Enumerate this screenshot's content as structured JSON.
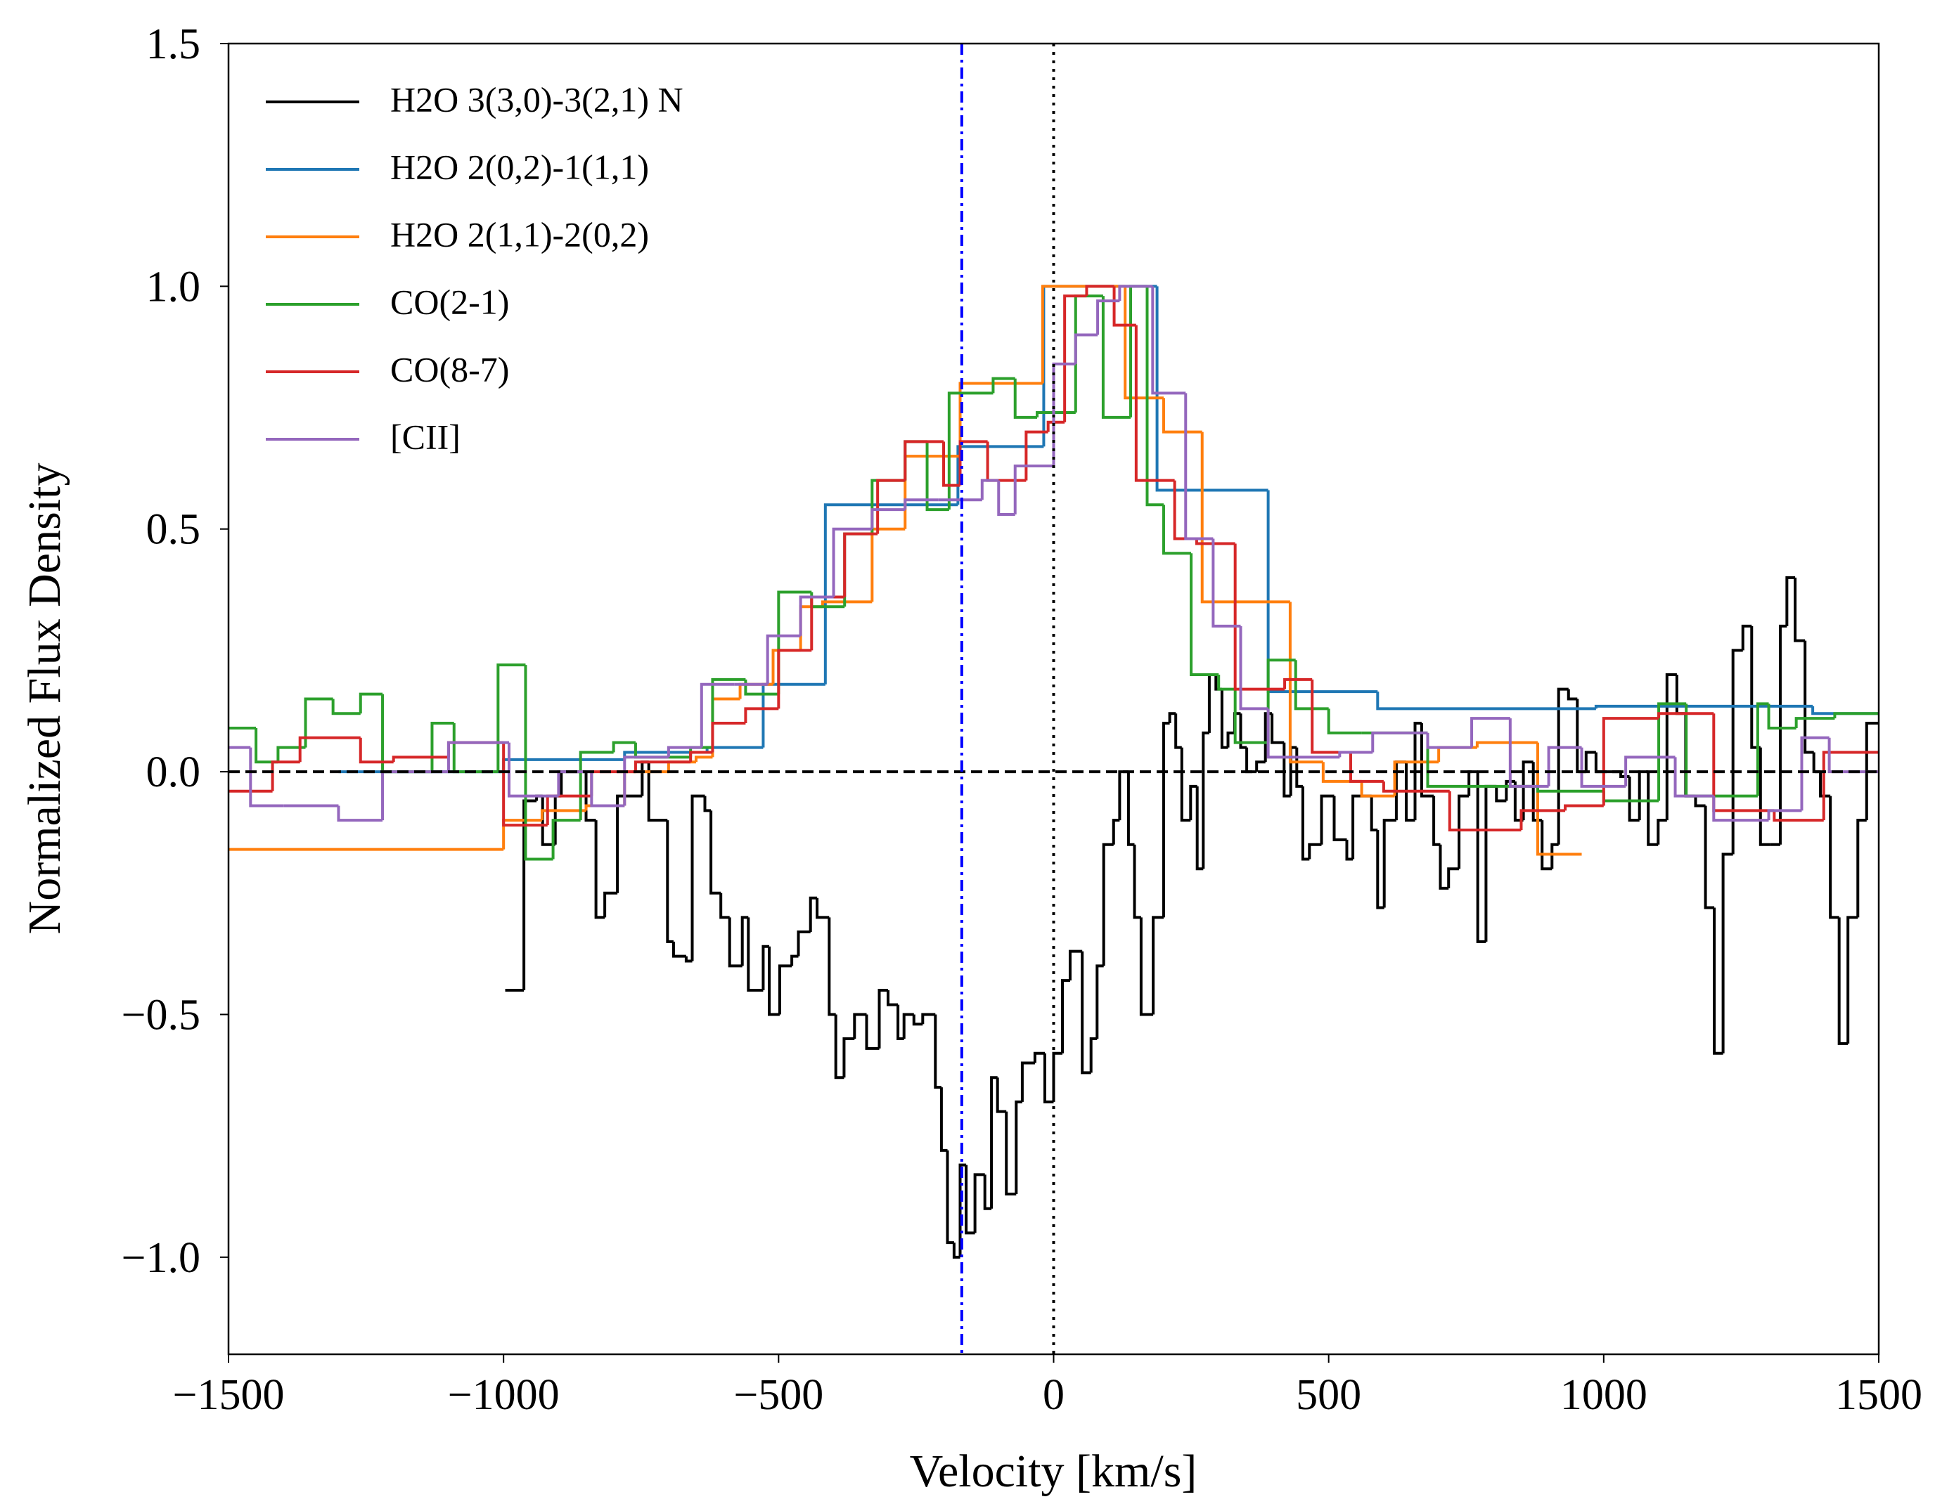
{
  "chart_data": {
    "type": "step",
    "x_label": "Velocity [km/s]",
    "y_label": "Normalized Flux Density",
    "xlim": [
      -1500,
      1500
    ],
    "ylim": [
      -1.2,
      1.5
    ],
    "xticks": [
      {
        "value": -1500,
        "label": "−1500"
      },
      {
        "value": -1000,
        "label": "−1000"
      },
      {
        "value": -500,
        "label": "−500"
      },
      0,
      500,
      1000,
      1500
    ],
    "yticks": [
      {
        "value": -1,
        "label": "−1.0"
      },
      {
        "value": -0.5,
        "label": "−0.5"
      },
      {
        "value": 0,
        "label": "0.0"
      },
      0.5,
      {
        "value": 1,
        "label": "1.0"
      },
      1.5
    ],
    "legend": "upper left",
    "reference_lines": [
      {
        "axis": "y",
        "value": 0,
        "style": "dashed",
        "color": "#000000"
      },
      {
        "axis": "x",
        "value": 0,
        "style": "dotted",
        "color": "#000000"
      },
      {
        "axis": "x",
        "value": -167,
        "style": "dashdot",
        "color": "#0000ff"
      }
    ],
    "series": [
      {
        "name": "H2O 3(3,0)-3(2,1) N",
        "color": "#000000",
        "bins": [
          -997,
          -963,
          -940,
          -929,
          -906,
          -895,
          -850,
          -832,
          -816,
          -793,
          -748,
          -736,
          -702,
          -691,
          -668,
          -657,
          -634,
          -623,
          -605,
          -589,
          -566,
          -555,
          -528,
          -517,
          -498,
          -476,
          -464,
          -442,
          -430,
          -408,
          -396,
          -381,
          -362,
          -340,
          -317,
          -301,
          -283,
          -272,
          -254,
          -238,
          -215,
          -204,
          -193,
          -181,
          -170,
          -159,
          -143,
          -125,
          -113,
          -102,
          -86,
          -68,
          -57,
          -34,
          -16,
          0,
          16,
          30,
          52,
          68,
          79,
          91,
          109,
          120,
          136,
          147,
          159,
          181,
          200,
          211,
          222,
          233,
          249,
          261,
          272,
          283,
          295,
          306,
          317,
          329,
          340,
          351,
          369,
          385,
          397,
          419,
          431,
          442,
          453,
          465,
          487,
          510,
          533,
          544,
          578,
          589,
          601,
          623,
          641,
          657,
          669,
          691,
          703,
          718,
          737,
          755,
          771,
          786,
          805,
          823,
          839,
          854,
          872,
          888,
          906,
          918,
          936,
          952,
          968,
          986,
          1031,
          1047,
          1065,
          1081,
          1099,
          1115,
          1133,
          1149,
          1167,
          1185,
          1201,
          1217,
          1235,
          1253,
          1269,
          1285,
          1303,
          1321,
          1333,
          1348,
          1366,
          1382,
          1394,
          1412,
          1428,
          1444,
          1462,
          1478,
          1500
        ],
        "values": [
          -0.45,
          -0.06,
          -0.05,
          -0.15,
          -0.05,
          0.0,
          -0.1,
          -0.3,
          -0.25,
          -0.05,
          0.02,
          -0.1,
          -0.35,
          -0.38,
          -0.39,
          -0.05,
          -0.08,
          -0.25,
          -0.3,
          -0.4,
          -0.3,
          -0.45,
          -0.36,
          -0.5,
          -0.4,
          -0.38,
          -0.33,
          -0.26,
          -0.3,
          -0.5,
          -0.63,
          -0.55,
          -0.5,
          -0.57,
          -0.45,
          -0.48,
          -0.55,
          -0.5,
          -0.52,
          -0.5,
          -0.65,
          -0.78,
          -0.97,
          -1.0,
          -0.81,
          -0.95,
          -0.83,
          -0.9,
          -0.63,
          -0.7,
          -0.87,
          -0.68,
          -0.6,
          -0.58,
          -0.68,
          -0.58,
          -0.43,
          -0.37,
          -0.62,
          -0.55,
          -0.4,
          -0.15,
          -0.1,
          0.0,
          -0.15,
          -0.3,
          -0.5,
          -0.3,
          0.1,
          0.12,
          0.05,
          -0.1,
          -0.03,
          -0.2,
          0.08,
          0.2,
          0.17,
          0.05,
          0.08,
          0.12,
          0.05,
          0.0,
          0.02,
          0.12,
          0.06,
          -0.05,
          0.05,
          -0.03,
          -0.18,
          -0.15,
          -0.05,
          -0.14,
          -0.18,
          -0.05,
          -0.12,
          -0.28,
          -0.1,
          0.02,
          -0.1,
          0.1,
          -0.05,
          -0.15,
          -0.24,
          -0.2,
          -0.05,
          0.0,
          -0.35,
          -0.03,
          -0.06,
          -0.02,
          -0.1,
          0.02,
          -0.1,
          -0.2,
          -0.15,
          0.17,
          0.15,
          0.0,
          0.04,
          0.0,
          -0.01,
          -0.1,
          0.0,
          -0.15,
          -0.1,
          0.2,
          0.12,
          -0.05,
          -0.07,
          -0.28,
          -0.58,
          -0.17,
          0.25,
          0.3,
          0.05,
          -0.15,
          -0.15,
          0.3,
          0.4,
          0.27,
          0.04,
          0.0,
          -0.05,
          -0.3,
          -0.56,
          -0.3,
          -0.1,
          0.1
        ]
      },
      {
        "name": "H2O 2(0,2)-1(1,1)",
        "color": "#1f77b4",
        "bins": [
          -1300,
          -1000,
          -780,
          -630,
          -528,
          -415,
          -174,
          -18,
          188,
          390,
          589,
          986,
          1380,
          1500
        ],
        "values": [
          0.0,
          0.025,
          0.04,
          0.05,
          0.18,
          0.55,
          0.67,
          1.0,
          0.58,
          0.165,
          0.13,
          0.135,
          0.12
        ]
      },
      {
        "name": "H2O 2(1,1)-2(0,2)",
        "color": "#ff7f0e",
        "bins": [
          -1500,
          -1000,
          -930,
          -850,
          -780,
          -700,
          -650,
          -620,
          -570,
          -510,
          -460,
          -420,
          -330,
          -270,
          -170,
          -20,
          130,
          200,
          270,
          430,
          490,
          560,
          620,
          700,
          770,
          880,
          960
        ],
        "values": [
          -0.16,
          -0.1,
          -0.08,
          -0.07,
          0.0,
          0.02,
          0.03,
          0.15,
          0.18,
          0.25,
          0.34,
          0.35,
          0.5,
          0.65,
          0.8,
          1.0,
          0.77,
          0.7,
          0.35,
          0.02,
          -0.02,
          -0.05,
          0.02,
          0.05,
          0.06,
          -0.17
        ]
      },
      {
        "name": "CO(2-1)",
        "color": "#2ca02c",
        "bins": [
          -1500,
          -1450,
          -1410,
          -1360,
          -1310,
          -1260,
          -1220,
          -1130,
          -1090,
          -1010,
          -960,
          -910,
          -860,
          -800,
          -760,
          -660,
          -620,
          -560,
          -500,
          -440,
          -380,
          -330,
          -270,
          -230,
          -190,
          -110,
          -70,
          -30,
          40,
          90,
          140,
          170,
          200,
          250,
          300,
          330,
          390,
          440,
          500,
          560,
          680,
          880,
          1000,
          1100,
          1150,
          1280,
          1300,
          1350,
          1420,
          1500
        ],
        "values": [
          0.09,
          0.02,
          0.05,
          0.15,
          0.12,
          0.16,
          0.0,
          0.1,
          0.0,
          0.22,
          -0.18,
          -0.1,
          0.04,
          0.06,
          0.03,
          0.05,
          0.19,
          0.16,
          0.37,
          0.34,
          0.49,
          0.6,
          0.68,
          0.54,
          0.78,
          0.81,
          0.73,
          0.74,
          0.98,
          0.73,
          1.0,
          0.55,
          0.45,
          0.2,
          0.17,
          0.06,
          0.23,
          0.13,
          0.08,
          0.08,
          -0.03,
          -0.04,
          -0.06,
          0.14,
          -0.05,
          0.14,
          0.09,
          0.11,
          0.12
        ]
      },
      {
        "name": "CO(8-7)",
        "color": "#d62728",
        "bins": [
          -1500,
          -1420,
          -1370,
          -1260,
          -1200,
          -1100,
          -1000,
          -920,
          -840,
          -760,
          -660,
          -620,
          -560,
          -500,
          -440,
          -380,
          -320,
          -270,
          -200,
          -170,
          -120,
          -50,
          -10,
          20,
          60,
          110,
          150,
          220,
          260,
          330,
          420,
          470,
          540,
          600,
          720,
          850,
          930,
          1000,
          1100,
          1200,
          1310,
          1400,
          1500
        ],
        "values": [
          -0.04,
          0.02,
          0.07,
          0.02,
          0.03,
          0.06,
          -0.11,
          -0.05,
          0.0,
          0.02,
          0.04,
          0.1,
          0.13,
          0.25,
          0.36,
          0.49,
          0.6,
          0.68,
          0.59,
          0.68,
          0.6,
          0.7,
          0.72,
          0.98,
          1.0,
          0.92,
          0.6,
          0.48,
          0.47,
          0.17,
          0.19,
          0.04,
          -0.02,
          -0.04,
          -0.12,
          -0.08,
          -0.07,
          0.11,
          0.12,
          -0.08,
          -0.1,
          0.04
        ]
      },
      {
        "name": "[CII]",
        "color": "#9467bd",
        "bins": [
          -1500,
          -1460,
          -1400,
          -1300,
          -1220,
          -1100,
          -990,
          -900,
          -840,
          -780,
          -700,
          -640,
          -580,
          -520,
          -460,
          -400,
          -330,
          -270,
          -210,
          -130,
          -100,
          -70,
          0,
          40,
          80,
          120,
          180,
          240,
          290,
          340,
          390,
          440,
          520,
          580,
          680,
          760,
          830,
          900,
          960,
          1040,
          1130,
          1200,
          1300,
          1360,
          1410,
          1500
        ],
        "values": [
          0.05,
          -0.07,
          -0.07,
          -0.1,
          0.0,
          0.06,
          -0.05,
          0.0,
          -0.07,
          0.03,
          0.05,
          0.18,
          0.18,
          0.28,
          0.36,
          0.5,
          0.54,
          0.56,
          0.56,
          0.6,
          0.53,
          0.63,
          0.84,
          0.9,
          0.97,
          1.0,
          0.78,
          0.48,
          0.3,
          0.13,
          0.03,
          0.03,
          0.04,
          0.08,
          0.05,
          0.11,
          -0.03,
          0.05,
          -0.03,
          0.03,
          -0.05,
          -0.1,
          -0.08,
          0.07,
          0.0
        ]
      }
    ]
  }
}
